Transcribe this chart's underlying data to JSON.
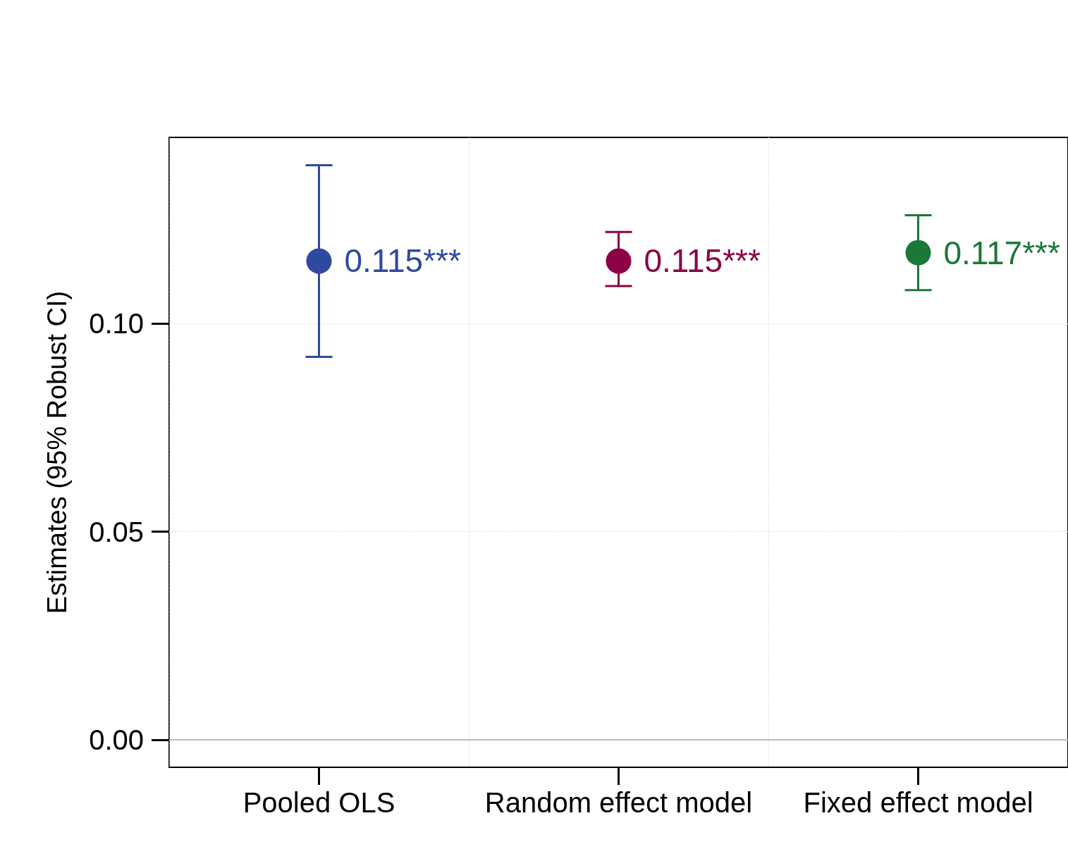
{
  "chart_data": {
    "type": "scatter",
    "ylabel": "Estimates (95% Robust CI)",
    "categories": [
      "Pooled OLS",
      "Random effect model",
      "Fixed effect model"
    ],
    "series": [
      {
        "values": [
          0.115,
          0.115,
          0.117
        ],
        "colors": [
          "#2e4a9e",
          "#8c0046",
          "#1b7837"
        ],
        "errors": [
          [
            0.092,
            0.138
          ],
          [
            0.109,
            0.122
          ],
          [
            0.108,
            0.126
          ]
        ],
        "value_labels": [
          "0.115***",
          "0.115***",
          "0.117***"
        ]
      }
    ],
    "ylim": [
      -0.0066,
      0.1447
    ],
    "yticks": [
      {
        "value": 0,
        "label": "0.00"
      },
      {
        "value": 0.05,
        "label": "0.05"
      },
      {
        "value": 0.1,
        "label": "0.10"
      }
    ],
    "grid": true,
    "marker": "circle",
    "ref_lines": [
      {
        "axis": "y",
        "value": 0,
        "color": "#bbbbbb"
      }
    ]
  }
}
